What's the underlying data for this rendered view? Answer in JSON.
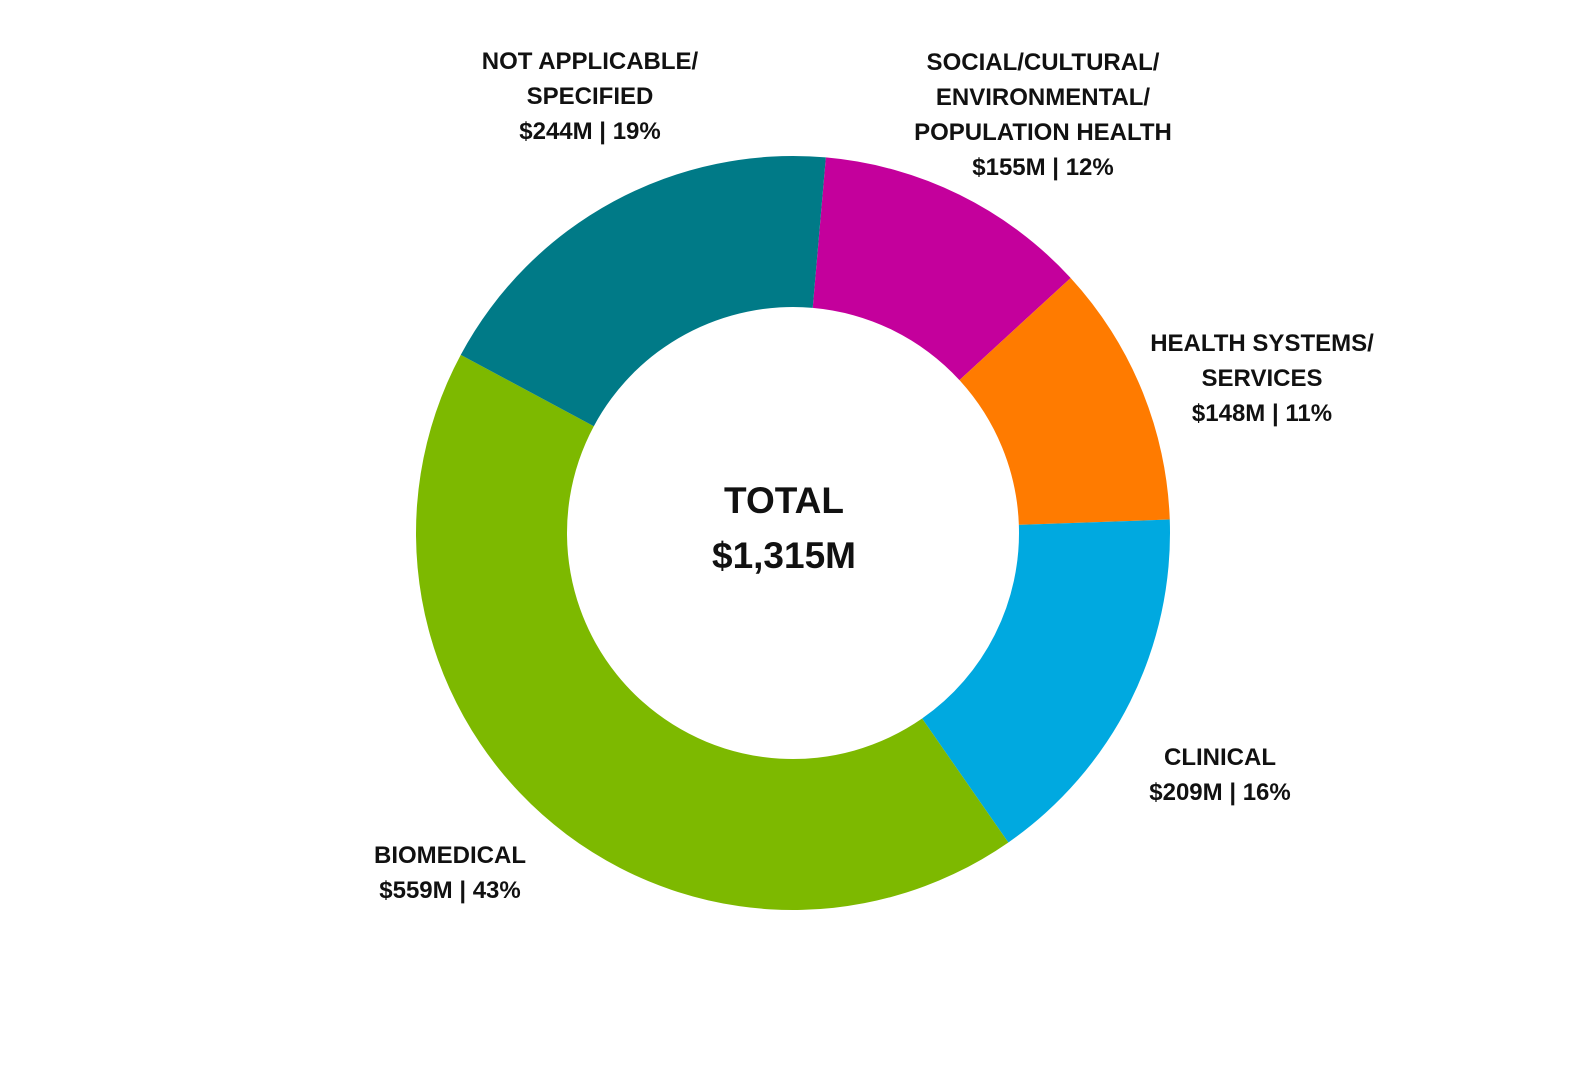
{
  "chart_data": {
    "type": "pie",
    "variant": "donut",
    "center": {
      "title": "TOTAL",
      "value": "$1,315M"
    },
    "slices": [
      {
        "label_lines": [
          "SOCIAL/CULTURAL/",
          "ENVIRONMENTAL/",
          "POPULATION HEALTH"
        ],
        "amount": 155,
        "percent": 12,
        "value_text": "$155M | 12%",
        "color": "#C4009C"
      },
      {
        "label_lines": [
          "HEALTH SYSTEMS/",
          "SERVICES"
        ],
        "amount": 148,
        "percent": 11,
        "value_text": "$148M | 11%",
        "color": "#FF7B00"
      },
      {
        "label_lines": [
          "CLINICAL"
        ],
        "amount": 209,
        "percent": 16,
        "value_text": "$209M | 16%",
        "color": "#00A9E0"
      },
      {
        "label_lines": [
          "BIOMEDICAL"
        ],
        "amount": 559,
        "percent": 43,
        "value_text": "$559M | 43%",
        "color": "#7DB900"
      },
      {
        "label_lines": [
          "NOT APPLICABLE/",
          "SPECIFIED"
        ],
        "amount": 244,
        "percent": 19,
        "value_text": "$244M | 19%",
        "color": "#007A87"
      }
    ],
    "unit": "$M",
    "legend": "none"
  }
}
